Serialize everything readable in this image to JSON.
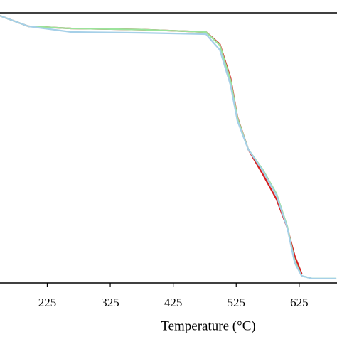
{
  "chart_data": {
    "type": "line",
    "x_label": "Temperature (°C)",
    "x": [
      150,
      195,
      263,
      375,
      477,
      499,
      516,
      527,
      544,
      567,
      589,
      606,
      618,
      629,
      646,
      684
    ],
    "series": [
      {
        "color": "#d62020",
        "values": [
          98.9,
          95,
          94.2,
          93.8,
          92.9,
          88.4,
          75.8,
          61.3,
          49.5,
          40.3,
          31,
          20.5,
          10,
          3.4,
          null,
          null
        ]
      },
      {
        "color": "#9be39b",
        "values": [
          98.9,
          95,
          94.2,
          93.8,
          92.9,
          88,
          75,
          61,
          49.5,
          42,
          33,
          21,
          8,
          2.6,
          1.6,
          1.6
        ]
      },
      {
        "color": "#a6d0e8",
        "values": [
          98.9,
          95,
          92.9,
          92.6,
          92.1,
          86.3,
          73.2,
          60,
          49.5,
          41.6,
          32.4,
          20.5,
          7.4,
          2.6,
          1.6,
          1.6
        ]
      }
    ],
    "xlim": [
      150,
      685
    ],
    "xticks": [
      225,
      325,
      425,
      525,
      625
    ],
    "ylim": [
      0,
      100
    ]
  }
}
